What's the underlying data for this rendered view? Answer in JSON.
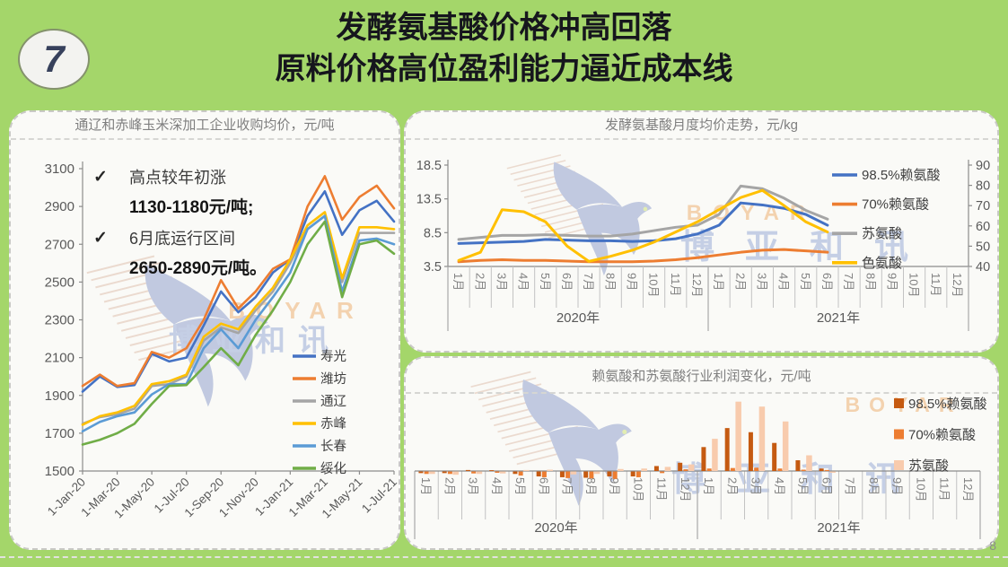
{
  "slide": {
    "badge": "7",
    "title_line1": "发酵氨基酸价格冲高回落",
    "title_line2": "原料价格高位盈利能力逼近成本线",
    "page_number": "8",
    "watermark": {
      "brand_en": "BOYAR",
      "brand_cn": "博亚和讯"
    },
    "colors": {
      "background_green": "#a4d66a",
      "panel_bg": "#fafaf7",
      "title_text": "#16161d",
      "chart_title_gray": "#7f7f7f",
      "axis_gray": "#595959"
    }
  },
  "chart_data": [
    {
      "type": "line",
      "title": "通辽和赤峰玉米深加工企业收购均价，元/吨",
      "xlabel": "",
      "ylabel": "元/吨",
      "ylim": [
        1500,
        3100
      ],
      "ytick_step": 200,
      "grid": false,
      "legend_position": "right-inside",
      "x_tick_labels": [
        "1-Jan-20",
        "1-Mar-20",
        "1-May-20",
        "1-Jul-20",
        "1-Sep-20",
        "1-Nov-20",
        "1-Jan-21",
        "1-Mar-21",
        "1-May-21",
        "1-Jul-21"
      ],
      "months_per_tick": 2,
      "annotations": [
        {
          "mark": "✓",
          "text": "高点较年初涨",
          "value": "1130-1180元/吨;"
        },
        {
          "mark": "✓",
          "text": "6月底运行区间",
          "value": "2650-2890元/吨。"
        }
      ],
      "series": [
        {
          "name": "寿光",
          "color": "#4472C4",
          "values": [
            1920,
            2000,
            1945,
            1955,
            2120,
            2080,
            2100,
            2270,
            2450,
            2340,
            2420,
            2550,
            2620,
            2850,
            2980,
            2750,
            2880,
            2930,
            2820
          ]
        },
        {
          "name": "潍坊",
          "color": "#ED7D31",
          "values": [
            1950,
            2010,
            1950,
            1965,
            2130,
            2100,
            2150,
            2300,
            2510,
            2360,
            2450,
            2570,
            2620,
            2900,
            3060,
            2830,
            2950,
            3010,
            2890
          ]
        },
        {
          "name": "通辽",
          "color": "#A5A5A5",
          "values": [
            1750,
            1785,
            1800,
            1830,
            1950,
            1960,
            2000,
            2190,
            2260,
            2230,
            2350,
            2450,
            2600,
            2780,
            2850,
            2500,
            2760,
            2760,
            2760
          ]
        },
        {
          "name": "赤峰",
          "color": "#FFC000",
          "values": [
            1745,
            1790,
            1810,
            1845,
            1960,
            1975,
            2010,
            2210,
            2280,
            2250,
            2370,
            2470,
            2620,
            2800,
            2870,
            2520,
            2790,
            2790,
            2780
          ]
        },
        {
          "name": "长春",
          "color": "#5B9BD5",
          "values": [
            1710,
            1760,
            1790,
            1810,
            1905,
            1960,
            1960,
            2150,
            2250,
            2150,
            2300,
            2420,
            2550,
            2780,
            2850,
            2450,
            2720,
            2730,
            2700
          ]
        },
        {
          "name": "绥化",
          "color": "#70AD47",
          "values": [
            1640,
            1665,
            1700,
            1750,
            1855,
            1950,
            1955,
            2050,
            2150,
            2060,
            2220,
            2350,
            2500,
            2700,
            2820,
            2420,
            2700,
            2720,
            2650
          ]
        }
      ]
    },
    {
      "type": "line",
      "title": "发酵氨基酸月度均价走势，元/kg",
      "xlabel": "",
      "ylabel": "元/kg",
      "ylim": [
        3.5,
        18.5
      ],
      "ytick_step": 5,
      "y2lim": [
        40,
        90
      ],
      "y2tick_step": 10,
      "grid": false,
      "legend_position": "right-inside",
      "categories": [
        "1月",
        "2月",
        "3月",
        "4月",
        "5月",
        "6月",
        "7月",
        "8月",
        "9月",
        "10月",
        "11月",
        "12月",
        "1月",
        "2月",
        "3月",
        "4月",
        "5月",
        "6月",
        "7月",
        "8月",
        "9月",
        "10月",
        "11月",
        "12月"
      ],
      "year_groups": [
        {
          "label": "2020年",
          "span": 12
        },
        {
          "label": "2021年",
          "span": 12
        }
      ],
      "series": [
        {
          "name": "98.5%赖氨酸",
          "color": "#4472C4",
          "axis": "left",
          "values": [
            6.9,
            7.0,
            7.1,
            7.2,
            7.5,
            7.4,
            7.3,
            7.3,
            7.2,
            7.3,
            7.6,
            8.3,
            9.6,
            12.9,
            12.6,
            12.1,
            11.2,
            9.6,
            null,
            null,
            null,
            null,
            null,
            null
          ]
        },
        {
          "name": "70%赖氨酸",
          "color": "#ED7D31",
          "axis": "left",
          "values": [
            4.2,
            4.4,
            4.5,
            4.4,
            4.4,
            4.3,
            4.2,
            4.2,
            4.2,
            4.3,
            4.5,
            4.8,
            5.2,
            5.6,
            5.9,
            6.0,
            5.8,
            5.6,
            null,
            null,
            null,
            null,
            null,
            null
          ]
        },
        {
          "name": "苏氨酸",
          "color": "#A5A5A5",
          "axis": "left",
          "values": [
            7.5,
            7.8,
            8.1,
            8.1,
            8.2,
            8.1,
            8.0,
            8.0,
            8.3,
            8.8,
            9.3,
            9.6,
            11.2,
            15.4,
            15.0,
            13.6,
            11.8,
            10.5,
            null,
            null,
            null,
            null,
            null,
            null
          ]
        },
        {
          "name": "色氨酸",
          "color": "#FFC000",
          "axis": "right",
          "values": [
            43,
            47,
            68,
            67,
            62,
            50,
            42.5,
            45,
            48,
            52,
            57,
            62,
            68,
            74,
            77.5,
            70,
            62,
            57,
            null,
            null,
            null,
            null,
            null,
            null
          ]
        }
      ]
    },
    {
      "type": "bar",
      "title": "赖氨酸和苏氨酸行业利润变化，元/吨",
      "xlabel": "",
      "ylabel": "元/吨",
      "ylim": [
        -500,
        4400
      ],
      "grid": false,
      "legend_position": "right-inside",
      "categories": [
        "1月",
        "2月",
        "3月",
        "4月",
        "5月",
        "6月",
        "7月",
        "8月",
        "9月",
        "10月",
        "11月",
        "12月",
        "1月",
        "2月",
        "3月",
        "4月",
        "5月",
        "6月",
        "7月",
        "8月",
        "9月",
        "10月",
        "11月",
        "12月"
      ],
      "year_groups": [
        {
          "label": "2020年",
          "span": 12
        },
        {
          "label": "2021年",
          "span": 12
        }
      ],
      "series": [
        {
          "name": "98.5%赖氨酸",
          "color": "#C55A11",
          "values": [
            -100,
            -100,
            60,
            50,
            -150,
            -300,
            -350,
            -380,
            -300,
            -300,
            300,
            500,
            1450,
            2600,
            2350,
            1700,
            650,
            150,
            0,
            0,
            0,
            0,
            0,
            0
          ]
        },
        {
          "name": "70%赖氨酸",
          "color": "#ED7D31",
          "values": [
            -150,
            -150,
            -120,
            -80,
            -250,
            -350,
            -400,
            -420,
            -450,
            -350,
            -100,
            100,
            150,
            180,
            200,
            150,
            80,
            60,
            0,
            0,
            0,
            0,
            0,
            0
          ]
        },
        {
          "name": "苏氨酸",
          "color": "#F8CBAD",
          "values": [
            -150,
            -200,
            -150,
            -120,
            60,
            80,
            -180,
            -150,
            120,
            150,
            250,
            400,
            1950,
            4200,
            3900,
            3000,
            950,
            -80,
            0,
            0,
            0,
            0,
            0,
            0
          ]
        }
      ]
    }
  ]
}
